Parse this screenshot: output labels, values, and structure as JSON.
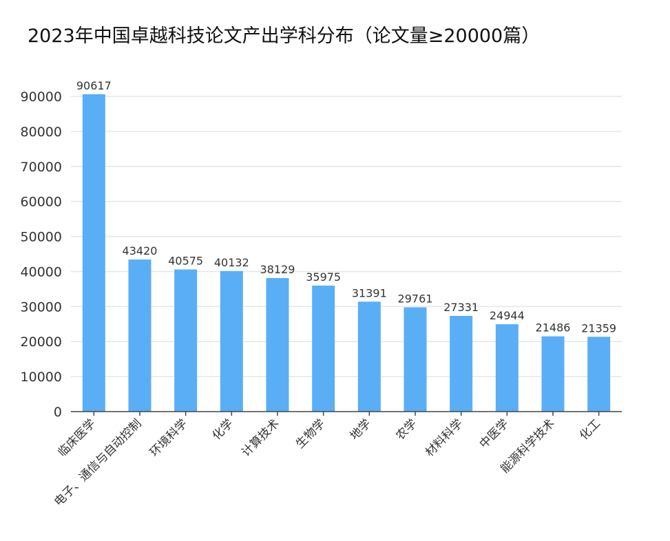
{
  "chart_data": {
    "type": "bar",
    "title": "2023年中国卓越科技论文产出学科分布（论文量≥20000篇）",
    "categories": [
      "临床医学",
      "电子、通信与自动控制",
      "环境科学",
      "化学",
      "计算技术",
      "生物学",
      "地学",
      "农学",
      "材料科学",
      "中医学",
      "能源科学技术",
      "化工"
    ],
    "values": [
      90617,
      43420,
      40575,
      40132,
      38129,
      35975,
      31391,
      29761,
      27331,
      24944,
      21486,
      21359
    ],
    "ylim": [
      0,
      90000
    ],
    "yticks": [
      0,
      10000,
      20000,
      30000,
      40000,
      50000,
      60000,
      70000,
      80000,
      90000
    ],
    "xlabel": "",
    "ylabel": "",
    "grid": true,
    "legend": "none",
    "bar_color": "#5aaef5",
    "data_labels": true
  }
}
